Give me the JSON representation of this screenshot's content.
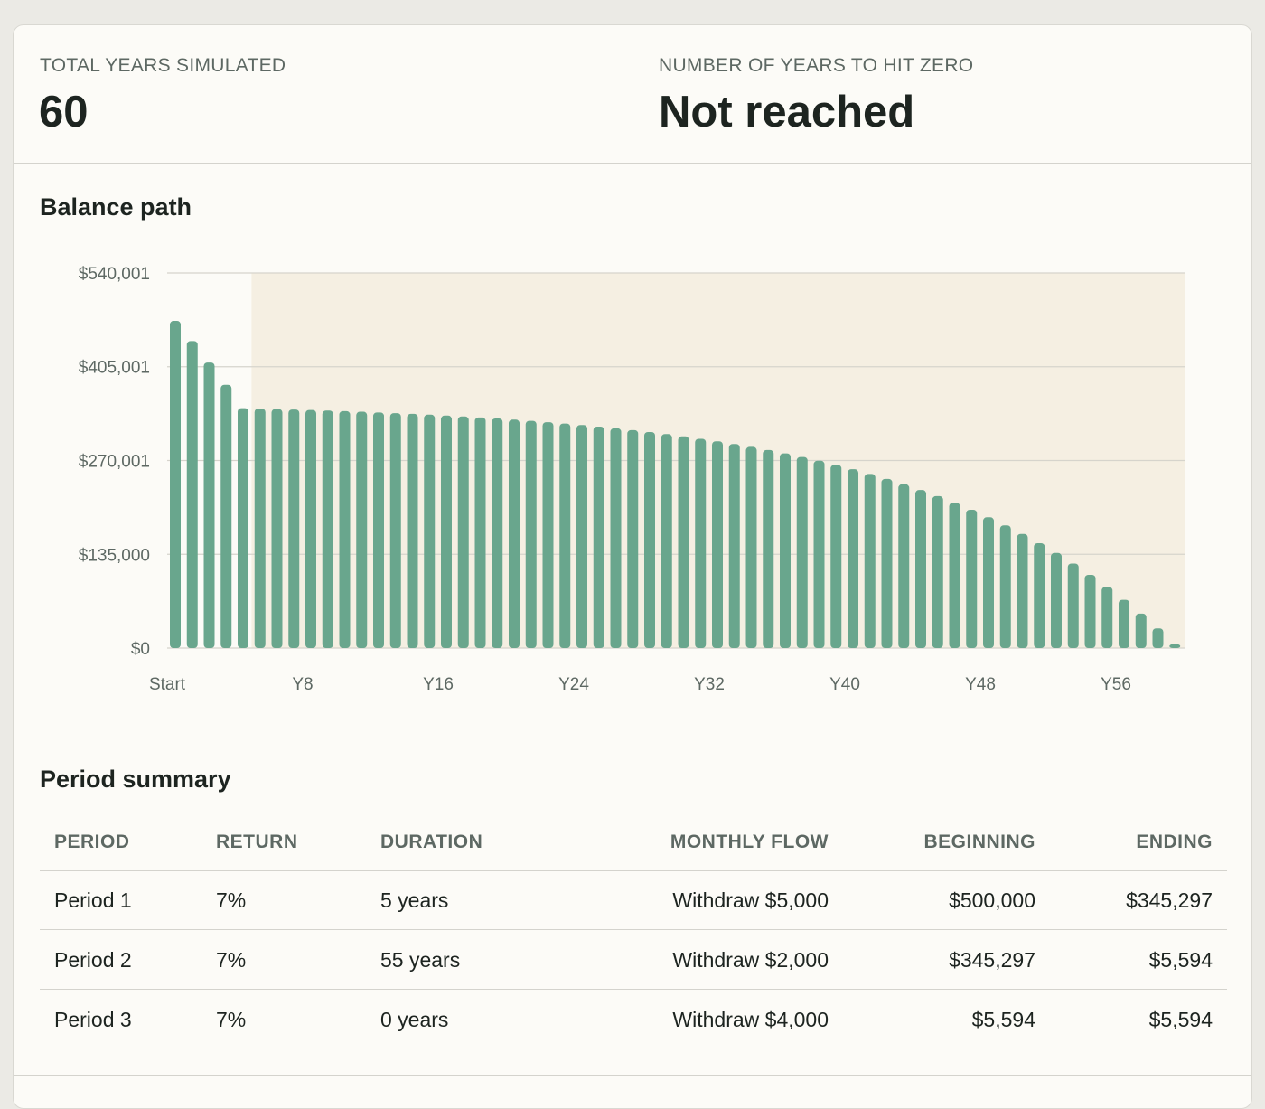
{
  "stats": [
    {
      "label": "TOTAL YEARS SIMULATED",
      "value": 60
    },
    {
      "label": "NUMBER OF YEARS TO HIT ZERO",
      "value": "Not reached"
    }
  ],
  "chart_data": {
    "type": "bar",
    "title": "Balance path",
    "categories": [
      "Start",
      null,
      null,
      null,
      null,
      null,
      null,
      null,
      "Y8",
      null,
      null,
      null,
      null,
      null,
      null,
      null,
      "Y16",
      null,
      null,
      null,
      null,
      null,
      null,
      null,
      "Y24",
      null,
      null,
      null,
      null,
      null,
      null,
      null,
      "Y32",
      null,
      null,
      null,
      null,
      null,
      null,
      null,
      "Y40",
      null,
      null,
      null,
      null,
      null,
      null,
      null,
      "Y48",
      null,
      null,
      null,
      null,
      null,
      null,
      null,
      "Y56",
      null,
      null,
      null
    ],
    "values": [
      471000,
      442000,
      411000,
      379000,
      345297,
      344700,
      344100,
      343400,
      342700,
      341900,
      341100,
      340200,
      339200,
      338200,
      337100,
      336000,
      334700,
      333400,
      332000,
      330500,
      328800,
      327100,
      325200,
      323200,
      321100,
      318800,
      316400,
      313800,
      311000,
      308000,
      304800,
      301300,
      297700,
      293800,
      289600,
      285100,
      280300,
      275100,
      269600,
      263700,
      257400,
      250700,
      243500,
      235800,
      227500,
      218700,
      209200,
      199100,
      188300,
      176700,
      164300,
      151000,
      136900,
      121700,
      105400,
      88100,
      69500,
      49600,
      28300,
      5594
    ],
    "color": "#69a68d",
    "ylim": [
      0,
      540001
    ],
    "yticks": [
      {
        "value": 0,
        "label": "$0"
      },
      {
        "value": 135000,
        "label": "$135,000"
      },
      {
        "value": 270001,
        "label": "$270,001"
      },
      {
        "value": 405001,
        "label": "$405,001"
      },
      {
        "value": 540001,
        "label": "$540,001"
      }
    ],
    "grid": true
  },
  "table": {
    "title": "Period summary",
    "columns": [
      "PERIOD",
      "RETURN",
      "DURATION",
      "MONTHLY FLOW",
      "BEGINNING",
      "ENDING"
    ],
    "rows": [
      [
        "Period 1",
        "7%",
        "5 years",
        "Withdraw $5,000",
        "$500,000",
        "$345,297"
      ],
      [
        "Period 2",
        "7%",
        "55 years",
        "Withdraw $2,000",
        "$345,297",
        "$5,594"
      ],
      [
        "Period 3",
        "7%",
        "0 years",
        "Withdraw $4,000",
        "$5,594",
        "$5,594"
      ]
    ]
  }
}
